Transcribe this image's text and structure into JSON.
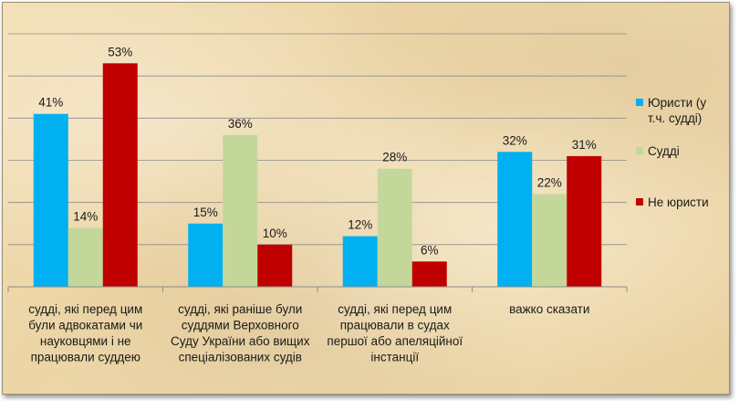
{
  "chart_data": {
    "type": "bar",
    "categories": [
      "судді, які перед цим були адвокатами чи науковцями і не працювали суддею",
      "судді, які раніше були суддями Верховного Суду України або вищих спеціалізованих судів",
      "судді, які перед цим працювали в судах першої або апеляційної інстанції",
      "важко сказати"
    ],
    "category_lines": [
      [
        "судді, які перед цим",
        "були адвокатами чи",
        "науковцями і не",
        "працювали суддею"
      ],
      [
        "судді, які раніше були",
        "суддями Верховного",
        "Суду України або вищих",
        "спеціалізованих судів"
      ],
      [
        "судді, які перед цим",
        "працювали в судах",
        "першої або апеляційної",
        "інстанції"
      ],
      [
        "важко сказати"
      ]
    ],
    "series": [
      {
        "name": "Юристи (у т.ч. судді)",
        "name_lines": [
          "Юристи (у",
          "т.ч. судді)"
        ],
        "color": "#00b0f0",
        "values": [
          41,
          15,
          12,
          32
        ],
        "labels": [
          "41%",
          "15%",
          "12%",
          "32%"
        ]
      },
      {
        "name": "Судді",
        "name_lines": [
          "Судді"
        ],
        "color": "#c4d79b",
        "values": [
          14,
          36,
          28,
          22
        ],
        "labels": [
          "14%",
          "36%",
          "28%",
          "22%"
        ]
      },
      {
        "name": "Не юристи",
        "name_lines": [
          "Не юристи"
        ],
        "color": "#c00000",
        "values": [
          53,
          10,
          6,
          31
        ],
        "labels": [
          "53%",
          "10%",
          "6%",
          "31%"
        ]
      }
    ],
    "ylim": [
      0,
      60
    ],
    "grid": true,
    "legend": "right"
  }
}
